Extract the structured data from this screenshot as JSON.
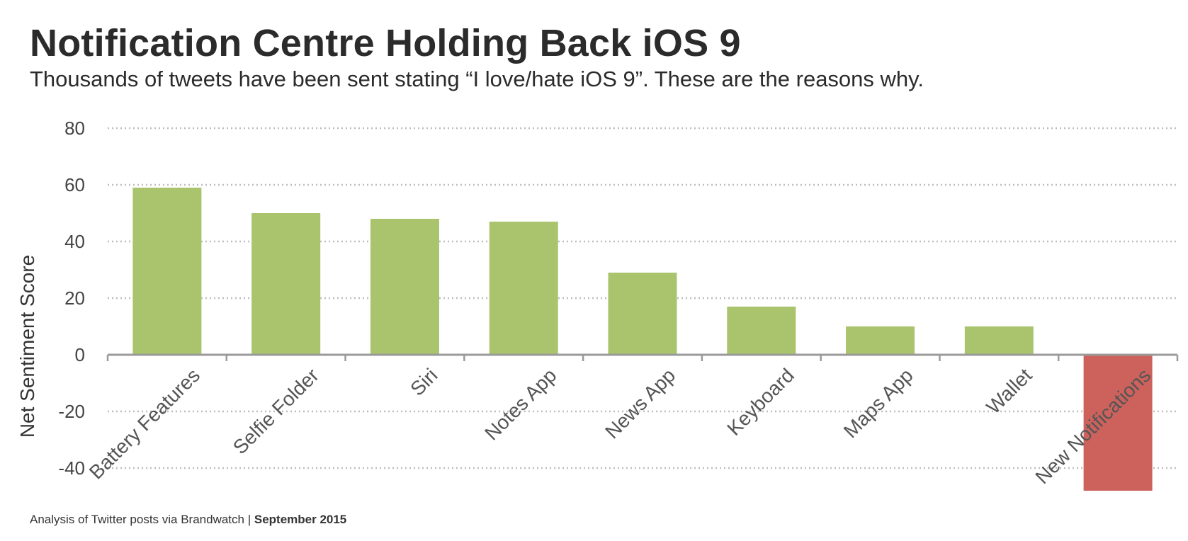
{
  "title": "Notification Centre Holding Back iOS 9",
  "subtitle": "Thousands of tweets have been sent stating “I love/hate iOS 9”. These are the reasons why.",
  "source": {
    "text": "Analysis of Twitter posts via Brandwatch | ",
    "date": "September 2015"
  },
  "chart_data": {
    "type": "bar",
    "ylabel": "Net Sentiment Score",
    "xlabel": "",
    "ylim": [
      -40,
      80
    ],
    "yticks": [
      -40,
      -20,
      0,
      20,
      40,
      60,
      80
    ],
    "grid": true,
    "categories": [
      "Battery Features",
      "Selfie Folder",
      "Siri",
      "Notes App",
      "News App",
      "Keyboard",
      "Maps App",
      "Wallet",
      "New Notifications"
    ],
    "values": [
      59,
      50,
      48,
      47,
      29,
      17,
      10,
      10,
      -48
    ],
    "colors": {
      "positive": "#a9c46c",
      "negative": "#cd625c",
      "grid": "#bdbdbd",
      "axis": "#9a9a9a"
    }
  }
}
